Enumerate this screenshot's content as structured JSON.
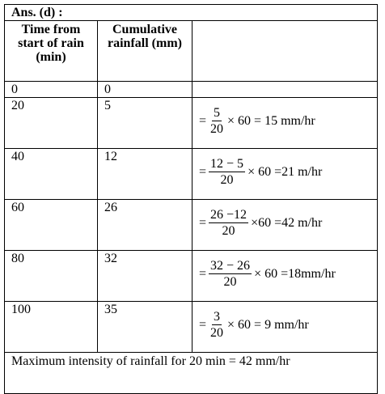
{
  "header": {
    "title": "Ans. (d) :"
  },
  "table": {
    "columns": [
      "Time from start of rain (min)",
      "Cumulative rainfall (mm)"
    ],
    "rows": [
      {
        "time": "0",
        "rainfall": "0"
      },
      {
        "time": "20",
        "rainfall": "5",
        "formula": {
          "prefix": "=",
          "numerator": "5",
          "denominator": "20",
          "suffix": "× 60 = 15 mm/hr"
        }
      },
      {
        "time": "40",
        "rainfall": "12",
        "formula": {
          "prefix": "=",
          "numerator": "12 − 5",
          "denominator": "20",
          "suffix": "× 60 =21 m/hr"
        }
      },
      {
        "time": "60",
        "rainfall": "26",
        "formula": {
          "prefix": "=",
          "numerator": "26 −12",
          "denominator": "20",
          "suffix": "×60 =42 m/hr"
        }
      },
      {
        "time": "80",
        "rainfall": "32",
        "formula": {
          "prefix": "=",
          "numerator": "32 − 26",
          "denominator": "20",
          "suffix": "× 60 =18mm/hr"
        }
      },
      {
        "time": "100",
        "rainfall": "35",
        "formula": {
          "prefix": "=",
          "numerator": "3",
          "denominator": "20",
          "suffix": "× 60 = 9 mm/hr"
        }
      }
    ]
  },
  "footer": {
    "text": "Maximum intensity of rainfall for 20 min = 42 mm/hr"
  }
}
